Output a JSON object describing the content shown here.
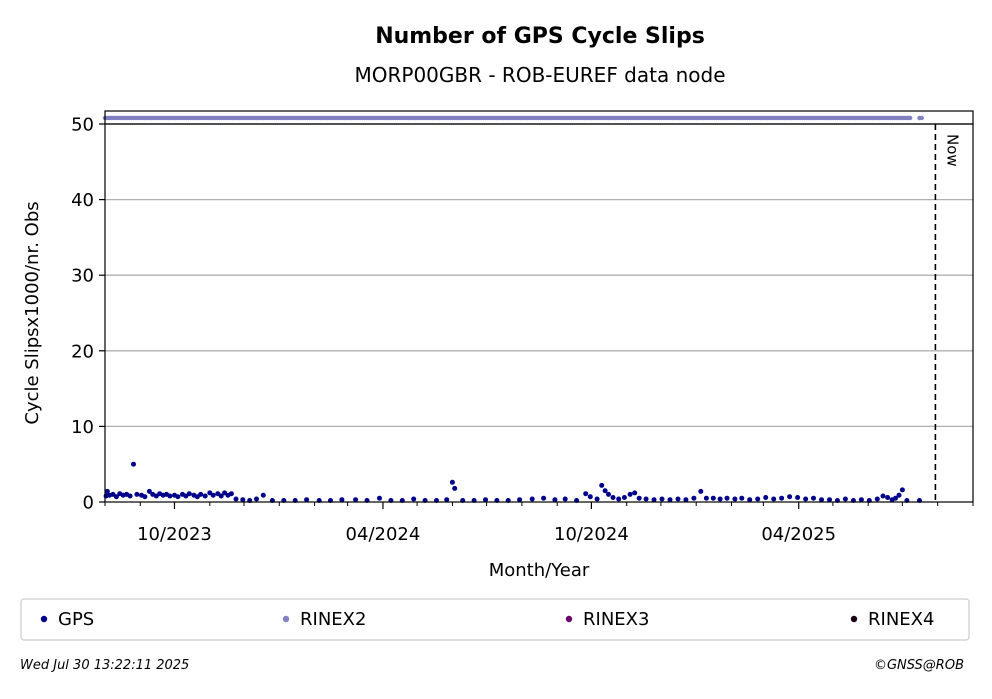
{
  "chart_data": {
    "type": "scatter",
    "title": "Number of GPS Cycle Slips",
    "subtitle": "MORP00GBR - ROB-EUREF data node",
    "xlabel": "Month/Year",
    "ylabel": "Cycle Slipsx1000/nr. Obs",
    "xlim": [
      "2023-08-01",
      "2025-09-01"
    ],
    "ylim": [
      0,
      50
    ],
    "y_ticks": [
      0,
      10,
      20,
      30,
      40,
      50
    ],
    "x_tick_labels": [
      "10/2023",
      "04/2024",
      "10/2024",
      "04/2025"
    ],
    "grid": "horizontal",
    "now_marker": {
      "date": "2025-07-30",
      "label": "Now"
    },
    "rinex_strip": {
      "series": "RINEX2",
      "ranges": [
        [
          "2023-08-01",
          "2025-07-09"
        ],
        [
          "2025-07-16",
          "2025-07-18"
        ]
      ]
    },
    "series": [
      {
        "name": "GPS",
        "color": "#00008b",
        "points": [
          [
            "2023-08-02",
            0.8
          ],
          [
            "2023-08-03",
            1.4
          ],
          [
            "2023-08-05",
            0.9
          ],
          [
            "2023-08-08",
            1.0
          ],
          [
            "2023-08-11",
            0.7
          ],
          [
            "2023-08-14",
            1.1
          ],
          [
            "2023-08-17",
            0.9
          ],
          [
            "2023-08-20",
            1.0
          ],
          [
            "2023-08-23",
            0.8
          ],
          [
            "2023-08-26",
            5.0
          ],
          [
            "2023-08-29",
            1.0
          ],
          [
            "2023-09-02",
            0.9
          ],
          [
            "2023-09-05",
            0.7
          ],
          [
            "2023-09-09",
            1.4
          ],
          [
            "2023-09-12",
            1.0
          ],
          [
            "2023-09-15",
            0.8
          ],
          [
            "2023-09-18",
            1.1
          ],
          [
            "2023-09-21",
            0.9
          ],
          [
            "2023-09-24",
            1.0
          ],
          [
            "2023-09-27",
            0.8
          ],
          [
            "2023-10-01",
            0.9
          ],
          [
            "2023-10-04",
            0.7
          ],
          [
            "2023-10-08",
            1.0
          ],
          [
            "2023-10-11",
            0.8
          ],
          [
            "2023-10-14",
            1.1
          ],
          [
            "2023-10-18",
            0.9
          ],
          [
            "2023-10-21",
            0.7
          ],
          [
            "2023-10-24",
            1.0
          ],
          [
            "2023-10-28",
            0.8
          ],
          [
            "2023-11-01",
            1.2
          ],
          [
            "2023-11-04",
            0.9
          ],
          [
            "2023-11-08",
            1.1
          ],
          [
            "2023-11-11",
            0.8
          ],
          [
            "2023-11-14",
            1.2
          ],
          [
            "2023-11-17",
            0.9
          ],
          [
            "2023-11-20",
            1.1
          ],
          [
            "2023-11-24",
            0.4
          ],
          [
            "2023-11-30",
            0.3
          ],
          [
            "2023-12-06",
            0.2
          ],
          [
            "2023-12-12",
            0.4
          ],
          [
            "2023-12-18",
            0.9
          ],
          [
            "2023-12-26",
            0.2
          ],
          [
            "2024-01-05",
            0.2
          ],
          [
            "2024-01-15",
            0.2
          ],
          [
            "2024-01-25",
            0.3
          ],
          [
            "2024-02-05",
            0.2
          ],
          [
            "2024-02-15",
            0.2
          ],
          [
            "2024-02-25",
            0.3
          ],
          [
            "2024-03-08",
            0.3
          ],
          [
            "2024-03-18",
            0.2
          ],
          [
            "2024-03-29",
            0.5
          ],
          [
            "2024-04-08",
            0.2
          ],
          [
            "2024-04-18",
            0.2
          ],
          [
            "2024-04-28",
            0.4
          ],
          [
            "2024-05-08",
            0.2
          ],
          [
            "2024-05-18",
            0.2
          ],
          [
            "2024-05-27",
            0.3
          ],
          [
            "2024-06-01",
            2.6
          ],
          [
            "2024-06-03",
            1.8
          ],
          [
            "2024-06-10",
            0.2
          ],
          [
            "2024-06-20",
            0.2
          ],
          [
            "2024-06-30",
            0.3
          ],
          [
            "2024-07-10",
            0.2
          ],
          [
            "2024-07-20",
            0.2
          ],
          [
            "2024-07-30",
            0.3
          ],
          [
            "2024-08-10",
            0.4
          ],
          [
            "2024-08-20",
            0.5
          ],
          [
            "2024-08-30",
            0.3
          ],
          [
            "2024-09-08",
            0.4
          ],
          [
            "2024-09-18",
            0.2
          ],
          [
            "2024-09-26",
            1.1
          ],
          [
            "2024-09-30",
            0.7
          ],
          [
            "2024-10-06",
            0.4
          ],
          [
            "2024-10-10",
            2.2
          ],
          [
            "2024-10-13",
            1.5
          ],
          [
            "2024-10-16",
            1.0
          ],
          [
            "2024-10-20",
            0.6
          ],
          [
            "2024-10-25",
            0.4
          ],
          [
            "2024-10-30",
            0.6
          ],
          [
            "2024-11-04",
            1.0
          ],
          [
            "2024-11-08",
            1.2
          ],
          [
            "2024-11-12",
            0.5
          ],
          [
            "2024-11-18",
            0.4
          ],
          [
            "2024-11-25",
            0.3
          ],
          [
            "2024-12-02",
            0.4
          ],
          [
            "2024-12-09",
            0.3
          ],
          [
            "2024-12-16",
            0.4
          ],
          [
            "2024-12-23",
            0.3
          ],
          [
            "2024-12-30",
            0.5
          ],
          [
            "2025-01-05",
            1.4
          ],
          [
            "2025-01-10",
            0.5
          ],
          [
            "2025-01-16",
            0.5
          ],
          [
            "2025-01-22",
            0.4
          ],
          [
            "2025-01-28",
            0.5
          ],
          [
            "2025-02-04",
            0.4
          ],
          [
            "2025-02-10",
            0.5
          ],
          [
            "2025-02-17",
            0.3
          ],
          [
            "2025-02-24",
            0.4
          ],
          [
            "2025-03-03",
            0.6
          ],
          [
            "2025-03-10",
            0.4
          ],
          [
            "2025-03-17",
            0.5
          ],
          [
            "2025-03-24",
            0.7
          ],
          [
            "2025-03-31",
            0.6
          ],
          [
            "2025-04-07",
            0.4
          ],
          [
            "2025-04-14",
            0.5
          ],
          [
            "2025-04-21",
            0.3
          ],
          [
            "2025-04-28",
            0.3
          ],
          [
            "2025-05-05",
            0.2
          ],
          [
            "2025-05-12",
            0.4
          ],
          [
            "2025-05-19",
            0.2
          ],
          [
            "2025-05-26",
            0.3
          ],
          [
            "2025-06-02",
            0.2
          ],
          [
            "2025-06-09",
            0.4
          ],
          [
            "2025-06-14",
            0.8
          ],
          [
            "2025-06-18",
            0.6
          ],
          [
            "2025-06-22",
            0.3
          ],
          [
            "2025-06-25",
            0.5
          ],
          [
            "2025-06-28",
            0.9
          ],
          [
            "2025-07-01",
            1.6
          ],
          [
            "2025-07-05",
            0.2
          ],
          [
            "2025-07-16",
            0.2
          ]
        ]
      }
    ]
  },
  "legend": {
    "position": "bottom",
    "items": [
      {
        "label": "GPS",
        "color": "#00008b"
      },
      {
        "label": "RINEX2",
        "color": "#8080c0"
      },
      {
        "label": "RINEX3",
        "color": "#6a0070"
      },
      {
        "label": "RINEX4",
        "color": "#1a0014"
      }
    ]
  },
  "footer": {
    "timestamp": "Wed Jul 30 13:22:11 2025",
    "credit": "©GNSS@ROB"
  }
}
